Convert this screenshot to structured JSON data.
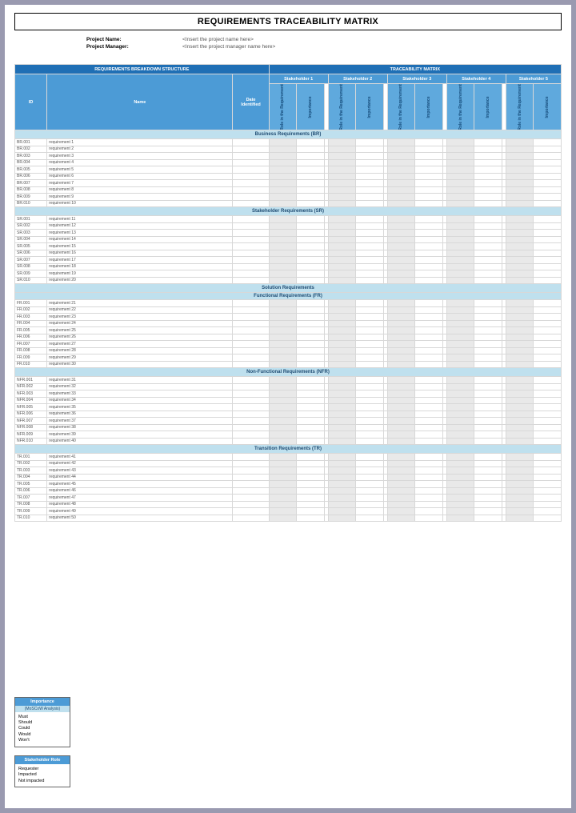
{
  "title": "REQUIREMENTS TRACEABILITY MATRIX",
  "meta": {
    "project_name_label": "Project Name:",
    "project_name_value": "<Insert the project name here>",
    "project_manager_label": "Project Manager:",
    "project_manager_value": "<Insert the project manager name here>"
  },
  "headers": {
    "left_band": "REQUIREMENTS BREAKDOWN STRUCTURE",
    "right_band": "TRACEABILITY MATRIX",
    "id": "ID",
    "name": "Name",
    "date": "Date Identified",
    "stakeholders": [
      "Stakeholder 1",
      "Stakeholder 2",
      "Stakeholder 3",
      "Stakeholder 4",
      "Stakeholder 5"
    ],
    "rot_a": "Role in the Requirement",
    "rot_b": "Importance"
  },
  "sections": [
    {
      "title": "Business Requirements (BR)",
      "prefix": "BR",
      "start": 1,
      "rows": 10
    },
    {
      "title": "Stakeholder Requirements (SR)",
      "prefix": "SR",
      "start": 11,
      "rows": 10
    },
    {
      "title": "Solution Requirements",
      "sub": "Functional Requirements (FR)",
      "prefix": "FR",
      "start": 21,
      "rows": 10
    },
    {
      "title": "Non-Functional Requirements (NFR)",
      "prefix": "NFR",
      "start": 31,
      "rows": 10
    },
    {
      "title": "Transition Requirements (TR)",
      "prefix": "TR",
      "start": 41,
      "rows": 10
    }
  ],
  "req_name_prefix": "requirement ",
  "legend": {
    "importance": {
      "title": "Importance",
      "subtitle": "(MoSCoW Analysis)",
      "items": [
        "Must",
        "Should",
        "Could",
        "Would",
        "Won't"
      ]
    },
    "role": {
      "title": "Stakeholder Role",
      "items": [
        "Requester",
        "Impacted",
        "Not impacted"
      ]
    }
  },
  "columns": {
    "id_w": 32,
    "name_w": 185,
    "date_w": 36,
    "stake_sub_w": 27.5
  },
  "colors": {
    "hdr_dark": "#1f6fb5",
    "hdr_mid": "#4c9bd6",
    "hdr_rot": "#5fa9dd",
    "band": "#bfe0ee",
    "grid": "#d8d8d8",
    "shade": "#e9e9e9",
    "page_bg": "#ffffff",
    "outer_bg": "#9a9ab0",
    "text_dark": "#154b7a"
  }
}
